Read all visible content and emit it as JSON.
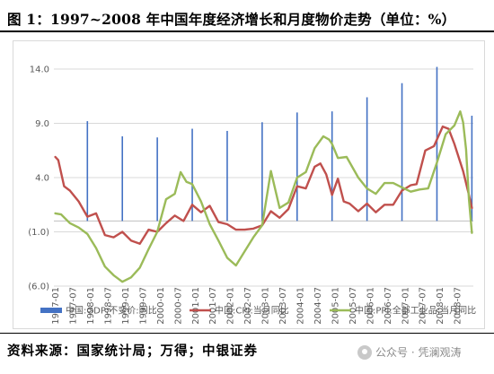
{
  "title": "图 1：1997~2008 年中国年度经济增长和月度物价走势（单位：%）",
  "source": "资料来源：国家统计局；万得；中银证券",
  "watermark": "公众号 · 凭澜观涛",
  "colors": {
    "gdp": "#4472c4",
    "cpi": "#c0504d",
    "ppi": "#9bbb59"
  },
  "chart_data": {
    "type": "line",
    "ylim": [
      -6,
      14
    ],
    "yticks": [
      {
        "value": 14,
        "label": "14.0"
      },
      {
        "value": 9,
        "label": "9.0"
      },
      {
        "value": 4,
        "label": "4.0"
      },
      {
        "value": -1,
        "label": "(1.0)"
      },
      {
        "value": -6,
        "label": "(6.0)"
      }
    ],
    "x_start": "1997-01",
    "x_end": "2008-12",
    "xticks": [
      "1997-01",
      "1997-07",
      "1998-01",
      "1998-07",
      "1999-01",
      "1999-07",
      "2000-01",
      "2000-07",
      "2001-01",
      "2001-07",
      "2002-01",
      "2002-07",
      "2003-01",
      "2003-07",
      "2004-01",
      "2004-07",
      "2005-01",
      "2005-07",
      "2006-01",
      "2006-07",
      "2007-01",
      "2007-07",
      "2008-01",
      "2008-07"
    ],
    "grid": true,
    "legend_position": "bottom",
    "series": [
      {
        "name": "中国:GDP:不变价:同比",
        "kind": "bar",
        "points": [
          [
            "1997-12",
            9.2
          ],
          [
            "1998-12",
            7.8
          ],
          [
            "1999-12",
            7.7
          ],
          [
            "2000-12",
            8.5
          ],
          [
            "2001-12",
            8.3
          ],
          [
            "2002-12",
            9.1
          ],
          [
            "2003-12",
            10.0
          ],
          [
            "2004-12",
            10.1
          ],
          [
            "2005-12",
            11.4
          ],
          [
            "2006-12",
            12.7
          ],
          [
            "2007-12",
            14.2
          ],
          [
            "2008-12",
            9.7
          ]
        ]
      },
      {
        "name": "中国:CPI:当月同比",
        "kind": "line",
        "points": [
          [
            "1997-01",
            5.9
          ],
          [
            "1997-02",
            5.6
          ],
          [
            "1997-04",
            3.2
          ],
          [
            "1997-06",
            2.8
          ],
          [
            "1997-09",
            1.8
          ],
          [
            "1997-12",
            0.4
          ],
          [
            "1998-03",
            0.7
          ],
          [
            "1998-06",
            -1.3
          ],
          [
            "1998-09",
            -1.5
          ],
          [
            "1998-12",
            -1.0
          ],
          [
            "1999-03",
            -1.8
          ],
          [
            "1999-06",
            -2.1
          ],
          [
            "1999-09",
            -0.8
          ],
          [
            "1999-12",
            -1.0
          ],
          [
            "2000-03",
            -0.2
          ],
          [
            "2000-06",
            0.5
          ],
          [
            "2000-09",
            0.0
          ],
          [
            "2000-12",
            1.5
          ],
          [
            "2001-03",
            0.8
          ],
          [
            "2001-06",
            1.4
          ],
          [
            "2001-09",
            -0.1
          ],
          [
            "2001-12",
            -0.3
          ],
          [
            "2002-03",
            -0.8
          ],
          [
            "2002-06",
            -0.8
          ],
          [
            "2002-09",
            -0.7
          ],
          [
            "2002-12",
            -0.4
          ],
          [
            "2003-03",
            0.9
          ],
          [
            "2003-06",
            0.3
          ],
          [
            "2003-09",
            1.1
          ],
          [
            "2003-12",
            3.2
          ],
          [
            "2004-03",
            3.0
          ],
          [
            "2004-06",
            5.0
          ],
          [
            "2004-08",
            5.3
          ],
          [
            "2004-10",
            4.3
          ],
          [
            "2004-12",
            2.4
          ],
          [
            "2005-02",
            3.9
          ],
          [
            "2005-04",
            1.8
          ],
          [
            "2005-06",
            1.6
          ],
          [
            "2005-09",
            0.9
          ],
          [
            "2005-12",
            1.6
          ],
          [
            "2006-03",
            0.8
          ],
          [
            "2006-06",
            1.5
          ],
          [
            "2006-09",
            1.5
          ],
          [
            "2006-12",
            2.8
          ],
          [
            "2007-03",
            3.3
          ],
          [
            "2007-05",
            3.4
          ],
          [
            "2007-08",
            6.5
          ],
          [
            "2007-11",
            6.9
          ],
          [
            "2008-02",
            8.7
          ],
          [
            "2008-04",
            8.5
          ],
          [
            "2008-06",
            7.1
          ],
          [
            "2008-09",
            4.6
          ],
          [
            "2008-11",
            2.4
          ],
          [
            "2008-12",
            1.2
          ]
        ]
      },
      {
        "name": "中国:PPI:全部工业品:当月同比",
        "kind": "line",
        "points": [
          [
            "1997-01",
            0.7
          ],
          [
            "1997-03",
            0.6
          ],
          [
            "1997-06",
            -0.2
          ],
          [
            "1997-09",
            -0.6
          ],
          [
            "1997-12",
            -1.2
          ],
          [
            "1998-03",
            -2.5
          ],
          [
            "1998-06",
            -4.2
          ],
          [
            "1998-09",
            -5.0
          ],
          [
            "1998-12",
            -5.6
          ],
          [
            "1999-03",
            -5.2
          ],
          [
            "1999-06",
            -4.3
          ],
          [
            "1999-09",
            -2.6
          ],
          [
            "1999-12",
            -1.0
          ],
          [
            "2000-03",
            2.0
          ],
          [
            "2000-06",
            2.5
          ],
          [
            "2000-08",
            4.5
          ],
          [
            "2000-10",
            3.6
          ],
          [
            "2000-12",
            3.4
          ],
          [
            "2001-03",
            1.8
          ],
          [
            "2001-06",
            -0.3
          ],
          [
            "2001-09",
            -1.8
          ],
          [
            "2001-12",
            -3.4
          ],
          [
            "2002-03",
            -4.1
          ],
          [
            "2002-06",
            -2.8
          ],
          [
            "2002-09",
            -1.5
          ],
          [
            "2002-12",
            -0.4
          ],
          [
            "2003-03",
            4.6
          ],
          [
            "2003-06",
            1.2
          ],
          [
            "2003-09",
            1.7
          ],
          [
            "2003-12",
            4.0
          ],
          [
            "2004-03",
            4.5
          ],
          [
            "2004-06",
            6.7
          ],
          [
            "2004-09",
            7.8
          ],
          [
            "2004-11",
            7.5
          ],
          [
            "2004-12",
            7.1
          ],
          [
            "2005-02",
            5.8
          ],
          [
            "2005-05",
            5.9
          ],
          [
            "2005-09",
            4.0
          ],
          [
            "2005-12",
            3.0
          ],
          [
            "2006-03",
            2.5
          ],
          [
            "2006-06",
            3.5
          ],
          [
            "2006-09",
            3.5
          ],
          [
            "2006-12",
            3.1
          ],
          [
            "2007-03",
            2.7
          ],
          [
            "2007-06",
            2.9
          ],
          [
            "2007-09",
            3.0
          ],
          [
            "2007-12",
            5.4
          ],
          [
            "2008-03",
            8.0
          ],
          [
            "2008-06",
            8.8
          ],
          [
            "2008-08",
            10.1
          ],
          [
            "2008-09",
            9.1
          ],
          [
            "2008-10",
            6.6
          ],
          [
            "2008-11",
            2.0
          ],
          [
            "2008-12",
            -1.1
          ]
        ]
      }
    ]
  }
}
